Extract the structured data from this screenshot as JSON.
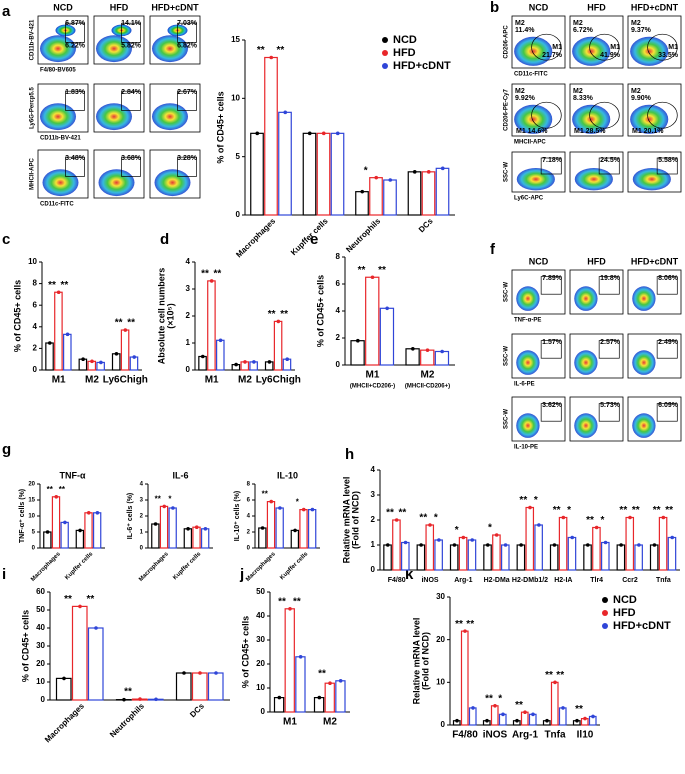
{
  "panel_labels": [
    "a",
    "b",
    "c",
    "d",
    "e",
    "f",
    "g",
    "h",
    "i",
    "j",
    "k"
  ],
  "flow": [
    {
      "columns": [
        "NCD",
        "HFD",
        "HFD+cDNT"
      ],
      "rows": [
        {
          "y_label": "CD11b-BV-421",
          "x_label": "F4/80-BV605",
          "cells": [
            [
              "6.87%",
              "6.22%"
            ],
            [
              "14.1%",
              "5.82%"
            ],
            [
              "7.03%",
              "6.82%"
            ]
          ]
        },
        {
          "y_label": "Ly6G-Percp5.5",
          "x_label": "CD11b-BV-421",
          "cells": [
            [
              "1.83%"
            ],
            [
              "2.84%"
            ],
            [
              "2.67%"
            ]
          ]
        },
        {
          "y_label": "MHCII-APC",
          "x_label": "CD11c-FITC",
          "cells": [
            [
              "3.48%"
            ],
            [
              "3.68%"
            ],
            [
              "3.28%"
            ]
          ]
        }
      ]
    },
    {
      "columns": [
        "NCD",
        "HFD",
        "HFD+cDNT"
      ],
      "rows": [
        {
          "y_label": "CD206-APC",
          "x_label": "CD11c-FITC",
          "cells": [
            [
              "M2",
              "11.4%",
              "M1",
              "21.7%"
            ],
            [
              "M2",
              "6.72%",
              "M1",
              "41.9%"
            ],
            [
              "M2",
              "9.37%",
              "M1",
              "33.5%"
            ]
          ]
        },
        {
          "y_label": "CD206-PE-Cy7",
          "x_label": "MHCII-APC",
          "cells": [
            [
              "M2",
              "9.92%",
              "M1 14.6%"
            ],
            [
              "M2",
              "8.33%",
              "M1 28.5%"
            ],
            [
              "M2",
              "9.90%",
              "M1 20.1%"
            ]
          ]
        },
        {
          "y_label": "SSC-W",
          "x_label": "Ly6C-APC",
          "cells": [
            [
              "7.18%"
            ],
            [
              "24.5%"
            ],
            [
              "5.58%"
            ]
          ]
        }
      ]
    },
    {
      "columns": [
        "NCD",
        "HFD",
        "HFD+cDNT"
      ],
      "rows": [
        {
          "y_label": "SSC-W",
          "x_label": "TNF-α-PE",
          "cells": [
            [
              "7.89%"
            ],
            [
              "19.8%"
            ],
            [
              "8.06%"
            ]
          ]
        },
        {
          "y_label": "SSC-W",
          "x_label": "IL-6-PE",
          "cells": [
            [
              "1.57%"
            ],
            [
              "2.57%"
            ],
            [
              "2.49%"
            ]
          ]
        },
        {
          "y_label": "SSC-W",
          "x_label": "IL-10-PE",
          "cells": [
            [
              "3.62%"
            ],
            [
              "5.73%"
            ],
            [
              "6.09%"
            ]
          ]
        }
      ]
    }
  ],
  "chart_data": [
    {
      "type": "bar",
      "y_label": "% of CD45+ cells",
      "categories": [
        "Macrophages",
        "Kupffer cells",
        "Neutrophils",
        "DCs"
      ],
      "series": [
        {
          "name": "NCD",
          "color": "#000000",
          "values": [
            7,
            7,
            2,
            3.7
          ]
        },
        {
          "name": "HFD",
          "color": "#e8262a",
          "values": [
            13.5,
            7,
            3.2,
            3.7
          ]
        },
        {
          "name": "HFD+cDNT",
          "color": "#2f45d8",
          "values": [
            8.8,
            7,
            3,
            4
          ]
        }
      ],
      "ylim": [
        0,
        15
      ],
      "yticks": [
        0,
        5,
        10,
        15
      ],
      "annotations": [
        {
          "text": "**",
          "category": 0
        },
        {
          "text": "**",
          "category": 0
        },
        {
          "text": "*",
          "category": 2
        }
      ],
      "legend": true
    },
    {
      "type": "bar",
      "y_label": "% of CD45+ cells",
      "categories": [
        "M1",
        "M2",
        "Ly6Chigh"
      ],
      "series": [
        {
          "name": "NCD",
          "color": "#000000",
          "values": [
            2.5,
            1,
            1.5
          ]
        },
        {
          "name": "HFD",
          "color": "#e8262a",
          "values": [
            7.2,
            0.8,
            3.7
          ]
        },
        {
          "name": "HFD+cDNT",
          "color": "#2f45d8",
          "values": [
            3.3,
            0.7,
            1.2
          ]
        }
      ],
      "ylim": [
        0,
        10
      ],
      "yticks": [
        0,
        2,
        4,
        6,
        8,
        10
      ],
      "annotations": [
        {
          "text": "**",
          "category": 0
        },
        {
          "text": "**",
          "category": 0
        },
        {
          "text": "**",
          "category": 2
        },
        {
          "text": "**",
          "category": 2
        }
      ]
    },
    {
      "type": "bar",
      "y_label": "Absolute cell numbers",
      "y_label2": "(×10⁵)",
      "categories": [
        "M1",
        "M2",
        "Ly6Chigh"
      ],
      "series": [
        {
          "name": "NCD",
          "color": "#000000",
          "values": [
            0.5,
            0.2,
            0.3
          ]
        },
        {
          "name": "HFD",
          "color": "#e8262a",
          "values": [
            3.3,
            0.3,
            1.8
          ]
        },
        {
          "name": "HFD+cDNT",
          "color": "#2f45d8",
          "values": [
            1.1,
            0.3,
            0.4
          ]
        }
      ],
      "ylim": [
        0,
        4
      ],
      "yticks": [
        0,
        1,
        2,
        3,
        4
      ],
      "annotations": [
        {
          "text": "**",
          "category": 0
        },
        {
          "text": "**",
          "category": 0
        },
        {
          "text": "**",
          "category": 2
        },
        {
          "text": "**",
          "category": 2
        }
      ]
    },
    {
      "type": "bar",
      "y_label": "% of CD45+ cells",
      "categories": [
        "M1",
        "M2"
      ],
      "category_notes": [
        "(MHCII+CD206-)",
        "(MHCII-CD206+)"
      ],
      "series": [
        {
          "name": "NCD",
          "color": "#000000",
          "values": [
            1.8,
            1.2
          ]
        },
        {
          "name": "HFD",
          "color": "#e8262a",
          "values": [
            6.5,
            1.1
          ]
        },
        {
          "name": "HFD+cDNT",
          "color": "#2f45d8",
          "values": [
            4.2,
            1.0
          ]
        }
      ],
      "ylim": [
        0,
        8
      ],
      "yticks": [
        0,
        2,
        4,
        6,
        8
      ],
      "annotations": [
        {
          "text": "**",
          "category": 0
        },
        {
          "text": "**",
          "category": 0
        }
      ]
    },
    {
      "type": "bar",
      "title": "TNF-α",
      "y_label": "TNF-α⁺ cells (%)",
      "categories": [
        "Macrophages",
        "Kupffer cells"
      ],
      "series": [
        {
          "name": "NCD",
          "color": "#000000",
          "values": [
            5,
            5.5
          ]
        },
        {
          "name": "HFD",
          "color": "#e8262a",
          "values": [
            16,
            11
          ]
        },
        {
          "name": "HFD+cDNT",
          "color": "#2f45d8",
          "values": [
            8,
            11
          ]
        }
      ],
      "ylim": [
        0,
        20
      ],
      "yticks": [
        0,
        5,
        10,
        15,
        20
      ],
      "annotations": [
        {
          "text": "**",
          "category": 0
        },
        {
          "text": "**",
          "category": 0
        }
      ]
    },
    {
      "type": "bar",
      "title": "IL-6",
      "y_label": "IL-6⁺ cells (%)",
      "categories": [
        "Macrophages",
        "Kupffer cells"
      ],
      "series": [
        {
          "name": "NCD",
          "color": "#000000",
          "values": [
            1.5,
            1.2
          ]
        },
        {
          "name": "HFD",
          "color": "#e8262a",
          "values": [
            2.6,
            1.3
          ]
        },
        {
          "name": "HFD+cDNT",
          "color": "#2f45d8",
          "values": [
            2.5,
            1.2
          ]
        }
      ],
      "ylim": [
        0,
        4
      ],
      "yticks": [
        0,
        1,
        2,
        3,
        4
      ],
      "annotations": [
        {
          "text": "**",
          "category": 0
        },
        {
          "text": "*",
          "category": 0
        }
      ]
    },
    {
      "type": "bar",
      "title": "IL-10",
      "y_label": "IL-10⁺ cells (%)",
      "categories": [
        "Macrophages",
        "Kupffer cells"
      ],
      "series": [
        {
          "name": "NCD",
          "color": "#000000",
          "values": [
            2.5,
            2.2
          ]
        },
        {
          "name": "HFD",
          "color": "#e8262a",
          "values": [
            5.8,
            4.8
          ]
        },
        {
          "name": "HFD+cDNT",
          "color": "#2f45d8",
          "values": [
            5,
            4.8
          ]
        }
      ],
      "ylim": [
        0,
        8
      ],
      "yticks": [
        0,
        2,
        4,
        6,
        8
      ],
      "annotations": [
        {
          "text": "**",
          "category": 0
        },
        {
          "text": "*",
          "category": 1
        }
      ]
    },
    {
      "type": "bar",
      "y_label": "Relative mRNA level",
      "y_label2": "(Fold of NCD)",
      "categories": [
        "F4/80",
        "iNOS",
        "Arg-1",
        "H2-DMa",
        "H2-DMb1/2",
        "H2-IA",
        "Tlr4",
        "Ccr2",
        "Tnfa"
      ],
      "series": [
        {
          "name": "NCD",
          "color": "#000000",
          "values": [
            1,
            1,
            1,
            1,
            1,
            1,
            1,
            1,
            1
          ]
        },
        {
          "name": "HFD",
          "color": "#e8262a",
          "values": [
            2,
            1.8,
            1.3,
            1.4,
            2.5,
            2.1,
            1.7,
            2.1,
            2.1
          ]
        },
        {
          "name": "HFD+cDNT",
          "color": "#2f45d8",
          "values": [
            1.1,
            1.2,
            1.2,
            1.0,
            1.8,
            1.3,
            1.1,
            1.0,
            1.3
          ]
        }
      ],
      "ylim": [
        0,
        4
      ],
      "yticks": [
        0,
        1,
        2,
        3,
        4
      ],
      "annotations": [
        {
          "text": "**",
          "category": 0
        },
        {
          "text": "**",
          "category": 0
        },
        {
          "text": "**",
          "category": 1
        },
        {
          "text": "*",
          "category": 1
        },
        {
          "text": "*",
          "category": 2
        },
        {
          "text": "*",
          "category": 3
        },
        {
          "text": "**",
          "category": 4
        },
        {
          "text": "*",
          "category": 4
        },
        {
          "text": "**",
          "category": 5
        },
        {
          "text": "*",
          "category": 5
        },
        {
          "text": "**",
          "category": 6
        },
        {
          "text": "*",
          "category": 6
        },
        {
          "text": "**",
          "category": 7
        },
        {
          "text": "**",
          "category": 7
        },
        {
          "text": "**",
          "category": 8
        },
        {
          "text": "**",
          "category": 8
        }
      ]
    },
    {
      "type": "bar",
      "y_label": "% of CD45+ cells",
      "categories": [
        "Macrophages",
        "Neutrophils",
        "DCs"
      ],
      "series": [
        {
          "name": "NCD",
          "color": "#000000",
          "values": [
            12,
            0.2,
            15
          ]
        },
        {
          "name": "HFD",
          "color": "#e8262a",
          "values": [
            52,
            0.5,
            15
          ]
        },
        {
          "name": "HFD+cDNT",
          "color": "#2f45d8",
          "values": [
            40,
            0.4,
            15
          ]
        }
      ],
      "ylim": [
        0,
        60
      ],
      "yticks": [
        0,
        10,
        20,
        30,
        40,
        50,
        60
      ],
      "annotations": [
        {
          "text": "**",
          "category": 0
        },
        {
          "text": "**",
          "category": 0
        },
        {
          "text": "**",
          "category": 1
        }
      ]
    },
    {
      "type": "bar",
      "y_label": "% of CD45+ cells",
      "categories": [
        "M1",
        "M2"
      ],
      "series": [
        {
          "name": "NCD",
          "color": "#000000",
          "values": [
            6,
            6
          ]
        },
        {
          "name": "HFD",
          "color": "#e8262a",
          "values": [
            43,
            12
          ]
        },
        {
          "name": "HFD+cDNT",
          "color": "#2f45d8",
          "values": [
            23,
            13
          ]
        }
      ],
      "ylim": [
        0,
        50
      ],
      "yticks": [
        0,
        10,
        20,
        30,
        40,
        50
      ],
      "annotations": [
        {
          "text": "**",
          "category": 0
        },
        {
          "text": "**",
          "category": 0
        },
        {
          "text": "**",
          "category": 1
        }
      ]
    },
    {
      "type": "bar",
      "y_label": "Relative mRNA level",
      "y_label2": "(Fold of NCD)",
      "categories": [
        "F4/80",
        "iNOS",
        "Arg-1",
        "Tnfa",
        "Il10"
      ],
      "series": [
        {
          "name": "NCD",
          "color": "#000000",
          "values": [
            1,
            1,
            1,
            1,
            1
          ]
        },
        {
          "name": "HFD",
          "color": "#e8262a",
          "values": [
            22,
            4.5,
            3,
            10,
            1.5
          ]
        },
        {
          "name": "HFD+cDNT",
          "color": "#2f45d8",
          "values": [
            4,
            2.5,
            2.5,
            4,
            2
          ]
        }
      ],
      "ylim": [
        0,
        30
      ],
      "yticks": [
        0,
        10,
        20,
        30
      ],
      "annotations": [
        {
          "text": "**",
          "category": 0
        },
        {
          "text": "**",
          "category": 0
        },
        {
          "text": "**",
          "category": 1
        },
        {
          "text": "*",
          "category": 1
        },
        {
          "text": "**",
          "category": 2
        },
        {
          "text": "**",
          "category": 3
        },
        {
          "text": "**",
          "category": 3
        },
        {
          "text": "**",
          "category": 4
        }
      ],
      "legend": true
    }
  ]
}
